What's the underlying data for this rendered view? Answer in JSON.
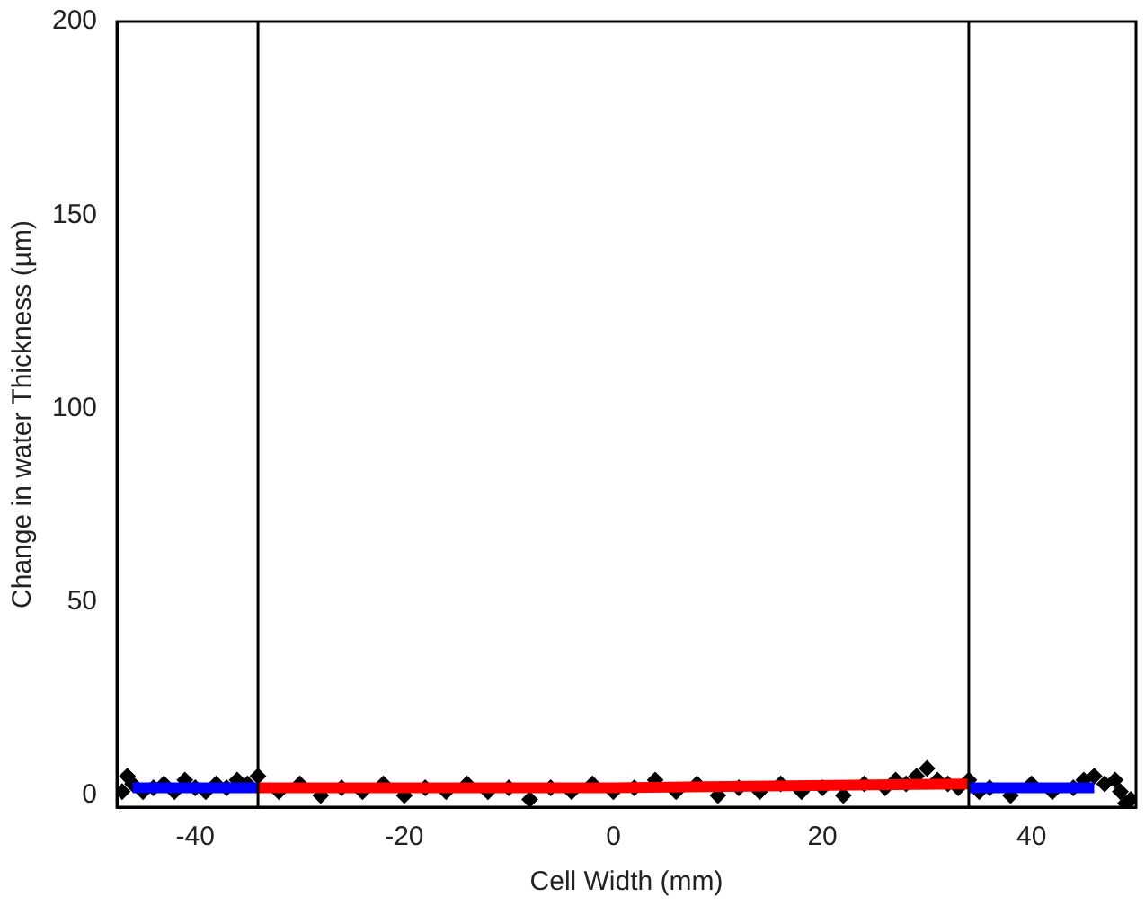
{
  "chart_data": {
    "type": "scatter",
    "xlabel": "Cell Width (mm)",
    "ylabel": "Change in water Thickness (µm)",
    "xlim": [
      -47.5,
      50
    ],
    "ylim": [
      -3,
      200
    ],
    "xticks": [
      -40,
      -20,
      0,
      20,
      40
    ],
    "yticks": [
      0,
      50,
      100,
      150,
      200
    ],
    "grid": false,
    "legend": false,
    "series": [
      {
        "color": "#000000",
        "marker": "diamond",
        "x": [
          -47,
          -46.5,
          -46,
          -45,
          -44,
          -43,
          -42,
          -41,
          -40,
          -39,
          -38,
          -37,
          -36,
          -35,
          -34,
          -32,
          -30,
          -28,
          -26,
          -24,
          -22,
          -20,
          -18,
          -16,
          -14,
          -12,
          -10,
          -8,
          -6,
          -4,
          -2,
          0,
          2,
          4,
          6,
          8,
          10,
          12,
          14,
          16,
          18,
          20,
          22,
          24,
          26,
          27,
          28,
          29,
          30,
          31,
          32,
          33,
          34,
          35,
          36,
          38,
          40,
          42,
          44,
          45,
          46,
          47,
          48,
          48.5,
          49,
          49.5
        ],
        "values": [
          1,
          5,
          3,
          1,
          2,
          3,
          1,
          4,
          2,
          1,
          3,
          2,
          4,
          3,
          5,
          1,
          3,
          0,
          2,
          1,
          3,
          0,
          2,
          1,
          3,
          1,
          2,
          -1,
          2,
          1,
          3,
          1,
          2,
          4,
          1,
          3,
          0,
          2,
          1,
          3,
          1,
          2,
          0,
          3,
          2,
          4,
          3,
          5,
          7,
          4,
          3,
          2,
          4,
          1,
          2,
          0,
          3,
          1,
          2,
          4,
          5,
          3,
          4,
          1,
          -2,
          -1
        ]
      },
      {
        "type": "line",
        "marker": "none",
        "color": "#0000ff",
        "x": [
          -46,
          -34
        ],
        "values": [
          2,
          2
        ]
      },
      {
        "type": "line",
        "marker": "none",
        "color": "#ff0000",
        "x": [
          -34,
          0,
          34
        ],
        "values": [
          2,
          2,
          3
        ]
      },
      {
        "type": "line",
        "marker": "none",
        "color": "#0000ff",
        "x": [
          34,
          46
        ],
        "values": [
          2,
          2
        ]
      }
    ],
    "ref_lines": [
      {
        "axis": "x",
        "value": -34,
        "color": "#000000"
      },
      {
        "axis": "x",
        "value": 34,
        "color": "#000000"
      }
    ]
  }
}
